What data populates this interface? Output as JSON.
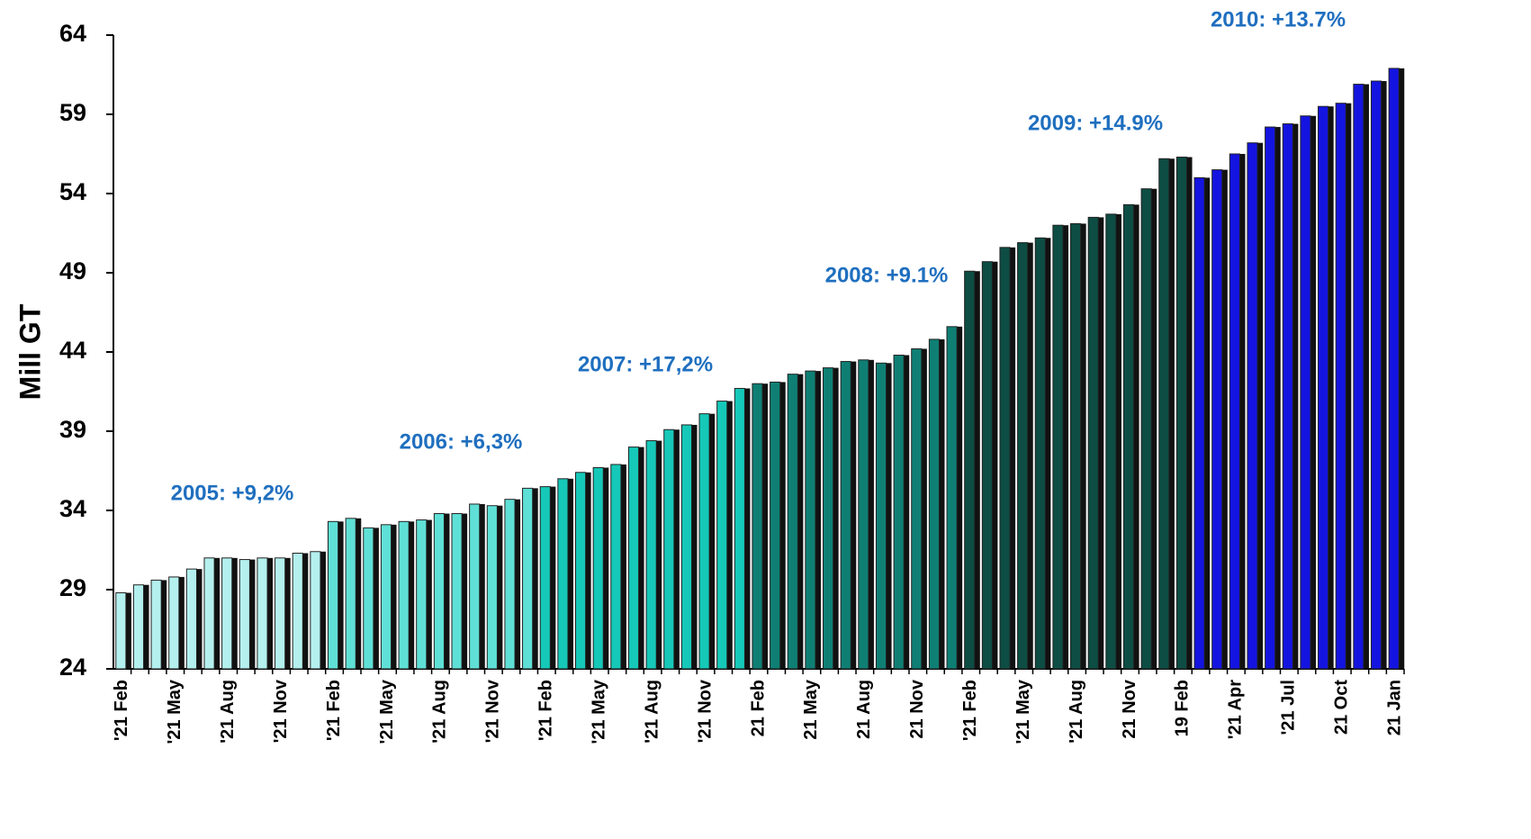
{
  "chart_data": {
    "type": "bar",
    "y_label": "Mill GT",
    "ylim": [
      24,
      64
    ],
    "yticks": [
      24,
      29,
      34,
      39,
      44,
      49,
      54,
      59,
      64
    ],
    "categories": [
      "'21 Feb",
      null,
      null,
      "'21 May",
      null,
      null,
      "'21 Aug",
      null,
      null,
      "'21 Nov",
      null,
      null,
      "'21 Feb",
      null,
      null,
      "'21 May",
      null,
      null,
      "'21 Aug",
      null,
      null,
      "'21 Nov",
      null,
      null,
      "'21 Feb",
      null,
      null,
      "'21 May",
      null,
      null,
      "'21 Aug",
      null,
      null,
      "'21 Nov",
      null,
      null,
      "21 Feb",
      null,
      null,
      "21 May",
      null,
      null,
      "21 Aug",
      null,
      null,
      "21 Nov",
      null,
      null,
      "'21 Feb",
      null,
      null,
      "'21 May",
      null,
      null,
      "'21 Aug",
      null,
      null,
      "21 Nov",
      null,
      null,
      "19 Feb",
      null,
      null,
      "'21 Apr",
      null,
      null,
      "'21 Jul",
      null,
      null,
      "21 Oct",
      null,
      null,
      "21 Jan"
    ],
    "values": [
      28.8,
      29.3,
      29.6,
      29.8,
      30.3,
      31.0,
      31.0,
      30.9,
      31.0,
      31.0,
      31.3,
      31.4,
      33.3,
      33.5,
      32.9,
      33.1,
      33.3,
      33.4,
      33.8,
      33.8,
      34.4,
      34.3,
      34.7,
      35.4,
      35.5,
      36.0,
      36.4,
      36.7,
      36.9,
      38.0,
      38.4,
      39.1,
      39.4,
      40.1,
      40.9,
      41.7,
      42.0,
      42.1,
      42.6,
      42.8,
      43.0,
      43.4,
      43.5,
      43.3,
      43.8,
      44.2,
      44.8,
      45.6,
      49.1,
      49.7,
      50.6,
      50.9,
      51.2,
      52.0,
      52.1,
      52.5,
      52.7,
      53.3,
      54.3,
      56.2,
      56.3,
      55.0,
      55.5,
      56.5,
      57.2,
      58.2,
      58.4,
      58.9,
      59.5,
      59.7,
      60.9,
      61.1,
      61.9
    ],
    "bar_colors": [
      "#b4f0ee",
      "#b4f0ee",
      "#b4f0ee",
      "#b4f0ee",
      "#b4f0ee",
      "#b4f0ee",
      "#b4f0ee",
      "#b4f0ee",
      "#b4f0ee",
      "#b4f0ee",
      "#b4f0ee",
      "#b4f0ee",
      "#5fe0d6",
      "#5fe0d6",
      "#5fe0d6",
      "#5fe0d6",
      "#5fe0d6",
      "#5fe0d6",
      "#5fe0d6",
      "#5fe0d6",
      "#5fe0d6",
      "#5fe0d6",
      "#5fe0d6",
      "#5fe0d6",
      "#16c8b8",
      "#16c8b8",
      "#16c8b8",
      "#16c8b8",
      "#16c8b8",
      "#16c8b8",
      "#16c8b8",
      "#16c8b8",
      "#16c8b8",
      "#16c8b8",
      "#16c8b8",
      "#16c8b8",
      "#0f7f74",
      "#0f7f74",
      "#0f7f74",
      "#0f7f74",
      "#0f7f74",
      "#0f7f74",
      "#0f7f74",
      "#0f7f74",
      "#0f7f74",
      "#0f7f74",
      "#0f7f74",
      "#0f7f74",
      "#0d4d44",
      "#0d4d44",
      "#0d4d44",
      "#0d4d44",
      "#0d4d44",
      "#0d4d44",
      "#0d4d44",
      "#0d4d44",
      "#0d4d44",
      "#0d4d44",
      "#0d4d44",
      "#0d4d44",
      "#0d4d44",
      "#1414e0",
      "#1414e0",
      "#1414e0",
      "#1414e0",
      "#1414e0",
      "#1414e0",
      "#1414e0",
      "#1414e0",
      "#1414e0",
      "#1414e0",
      "#1414e0",
      "#1414e0"
    ],
    "annotations": [
      "2005: +9,2%",
      "2006: +6,3%",
      "2007: +17,2%",
      "2008: +9.1%",
      "2009: +14.9%",
      "2010: +13.7%"
    ],
    "annotation_color": "#1f6fbf"
  }
}
